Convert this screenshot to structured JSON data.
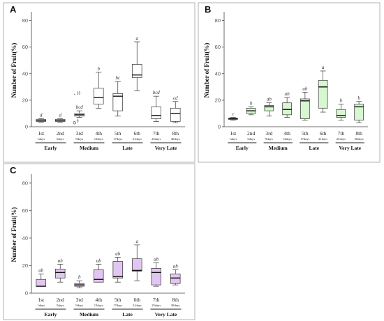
{
  "chart_data": [
    {
      "type": "box",
      "panel_label": "A",
      "ylabel": "Number of Fruit(%)",
      "ylim": [
        0,
        85
      ],
      "yticks": [
        0,
        20,
        40,
        60,
        80
      ],
      "fill_color": "#ffffff",
      "categories": [
        "1st",
        "2nd",
        "3rd",
        "4th",
        "5th",
        "6th",
        "7th",
        "8th"
      ],
      "day_labels": [
        "1days",
        "5days",
        "9days",
        "13days",
        "17days",
        "21days",
        "25days",
        "30days"
      ],
      "groups": [
        {
          "label": "Early",
          "span": [
            0,
            1
          ]
        },
        {
          "label": "Medium",
          "span": [
            2,
            3
          ]
        },
        {
          "label": "Late",
          "span": [
            4,
            5
          ]
        },
        {
          "label": "Very Late",
          "span": [
            6,
            7
          ]
        }
      ],
      "boxes": [
        {
          "min": 3.5,
          "q1": 4,
          "median": 4.5,
          "q3": 5.5,
          "max": 6
        },
        {
          "min": 3.5,
          "q1": 4,
          "median": 4.5,
          "q3": 5.5,
          "max": 6
        },
        {
          "min": 7,
          "q1": 8,
          "median": 9,
          "q3": 10,
          "max": 12
        },
        {
          "min": 14,
          "q1": 17,
          "median": 22,
          "q3": 29,
          "max": 41
        },
        {
          "min": 8,
          "q1": 12,
          "median": 23,
          "q3": 25,
          "max": 34
        },
        {
          "min": 27,
          "q1": 37,
          "median": 39,
          "q3": 47,
          "max": 64
        },
        {
          "min": 4,
          "q1": 6,
          "median": 8.5,
          "q3": 15,
          "max": 23
        },
        {
          "min": 3,
          "q1": 4,
          "median": 10,
          "q3": 14,
          "max": 19
        }
      ],
      "significance_letters": [
        "d",
        "d",
        "bcd",
        "b",
        "bc",
        "a",
        "bcd",
        "cd"
      ],
      "outliers": [
        {
          "category": 2,
          "value": 24,
          "marker": "*",
          "label": "15"
        },
        {
          "category": 2,
          "value": 3,
          "marker": "o",
          "label": "9"
        }
      ]
    },
    {
      "type": "box",
      "panel_label": "B",
      "ylabel": "Number of Fruit(%)",
      "ylim": [
        0,
        85
      ],
      "yticks": [
        0,
        20,
        40,
        60,
        80
      ],
      "fill_color": "#d6f7d0",
      "categories": [
        "1st",
        "2nd",
        "3rd",
        "4th",
        "5th",
        "6th",
        "7th",
        "8th"
      ],
      "day_labels": [
        "1days",
        "5days",
        "9days",
        "13days",
        "17days",
        "21days",
        "25days",
        "30days"
      ],
      "groups": [
        {
          "label": "Early",
          "span": [
            0,
            1
          ]
        },
        {
          "label": "Medium",
          "span": [
            2,
            3
          ]
        },
        {
          "label": "Late",
          "span": [
            4,
            5
          ]
        },
        {
          "label": "Very Late",
          "span": [
            6,
            7
          ]
        }
      ],
      "boxes": [
        {
          "min": 5,
          "q1": 5.5,
          "median": 6,
          "q3": 6.5,
          "max": 7
        },
        {
          "min": 9,
          "q1": 10,
          "median": 12,
          "q3": 14,
          "max": 15
        },
        {
          "min": 8,
          "q1": 12,
          "median": 15,
          "q3": 16,
          "max": 18
        },
        {
          "min": 7,
          "q1": 9,
          "median": 13,
          "q3": 18,
          "max": 22
        },
        {
          "min": 5,
          "q1": 6,
          "median": 19.5,
          "q3": 21,
          "max": 26
        },
        {
          "min": 11,
          "q1": 14,
          "median": 30,
          "q3": 35,
          "max": 42
        },
        {
          "min": 5,
          "q1": 7,
          "median": 8.5,
          "q3": 13,
          "max": 17
        },
        {
          "min": 3,
          "q1": 5,
          "median": 15,
          "q3": 17,
          "max": 19
        }
      ],
      "significance_letters": [
        "c",
        "b",
        "ab",
        "ab",
        "ab",
        "a",
        "b",
        "b"
      ],
      "outliers": []
    },
    {
      "type": "box",
      "panel_label": "C",
      "ylabel": "Number of Fruit(%)",
      "ylim": [
        0,
        85
      ],
      "yticks": [
        0,
        20,
        40,
        60,
        80
      ],
      "fill_color": "#e2c6f2",
      "categories": [
        "1st",
        "2nd",
        "3rd",
        "4th",
        "5th",
        "6th",
        "7th",
        "8th"
      ],
      "day_labels": [
        "1days",
        "5days",
        "9days",
        "13days",
        "17days",
        "21days",
        "25days",
        "30days"
      ],
      "groups": [
        {
          "label": "Early",
          "span": [
            0,
            1
          ]
        },
        {
          "label": "Medium",
          "span": [
            2,
            3
          ]
        },
        {
          "label": "Late",
          "span": [
            4,
            5
          ]
        },
        {
          "label": "Very Late",
          "span": [
            6,
            7
          ]
        }
      ],
      "boxes": [
        {
          "min": 5,
          "q1": 5,
          "median": 5,
          "q3": 10,
          "max": 14
        },
        {
          "min": 8,
          "q1": 11,
          "median": 15,
          "q3": 17.5,
          "max": 21
        },
        {
          "min": 4,
          "q1": 5,
          "median": 6,
          "q3": 7,
          "max": 9
        },
        {
          "min": 8,
          "q1": 8,
          "median": 10,
          "q3": 17,
          "max": 21
        },
        {
          "min": 8,
          "q1": 11,
          "median": 12,
          "q3": 23,
          "max": 26
        },
        {
          "min": 9,
          "q1": 16,
          "median": 16.5,
          "q3": 25,
          "max": 35
        },
        {
          "min": 5,
          "q1": 6,
          "median": 15,
          "q3": 18,
          "max": 22
        },
        {
          "min": 6,
          "q1": 7,
          "median": 11,
          "q3": 14,
          "max": 17
        }
      ],
      "significance_letters": [
        "ab",
        "ab",
        "b",
        "ab",
        "ab",
        "a",
        "ab",
        "ab"
      ],
      "outliers": []
    }
  ]
}
